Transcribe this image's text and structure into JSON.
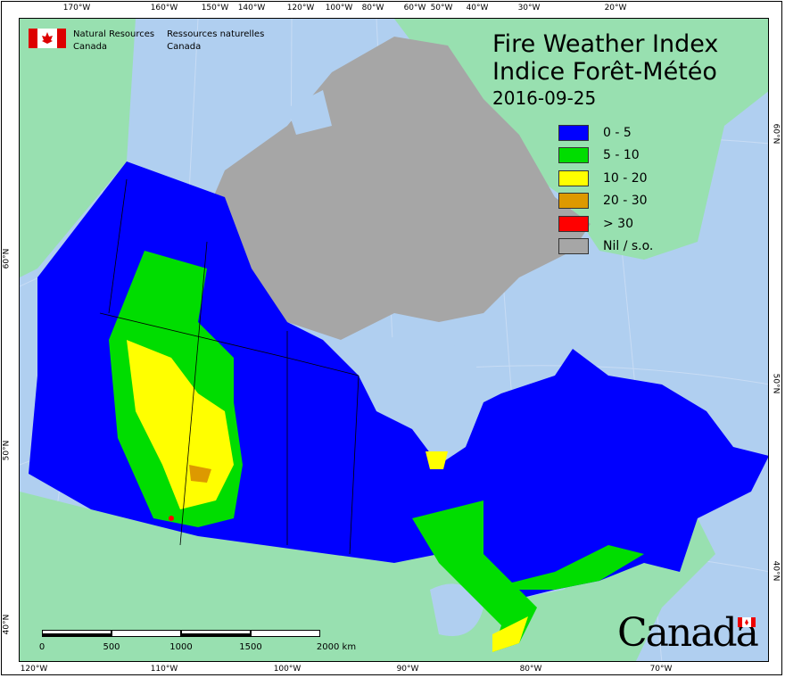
{
  "title_en": "Fire Weather Index",
  "title_fr": "Indice Forêt-Météo",
  "date": "2016-09-25",
  "agency": {
    "en_line1": "Natural Resources",
    "en_line2": "Canada",
    "fr_line1": "Ressources naturelles",
    "fr_line2": "Canada"
  },
  "wordmark": "Canada",
  "legend": [
    {
      "label": "0 - 5",
      "color": "#0000ff"
    },
    {
      "label": "5 - 10",
      "color": "#00dd00"
    },
    {
      "label": "10 - 20",
      "color": "#ffff00"
    },
    {
      "label": "20 - 30",
      "color": "#dd9900"
    },
    {
      "label": "> 30",
      "color": "#ff0000"
    },
    {
      "label": "Nil / s.o.",
      "color": "#a6a6a6"
    }
  ],
  "scale_bar": {
    "labels": [
      "0",
      "500",
      "1000",
      "1500",
      "2000 km"
    ]
  },
  "graticule": {
    "top": [
      "170°W",
      "160°W",
      "150°W",
      "140°W",
      "120°W",
      "100°W",
      "80°W",
      "60°W",
      "50°W",
      "40°W",
      "30°W",
      "20°W"
    ],
    "bottom": [
      "120°W",
      "110°W",
      "100°W",
      "90°W",
      "80°W",
      "70°W"
    ],
    "left": [
      "60°N",
      "50°N",
      "40°N"
    ],
    "right": [
      "60°N",
      "50°N",
      "40°N"
    ]
  },
  "colors": {
    "water": "#b0cff0",
    "foreign_land": "#98e0b0",
    "nil": "#a6a6a6"
  }
}
